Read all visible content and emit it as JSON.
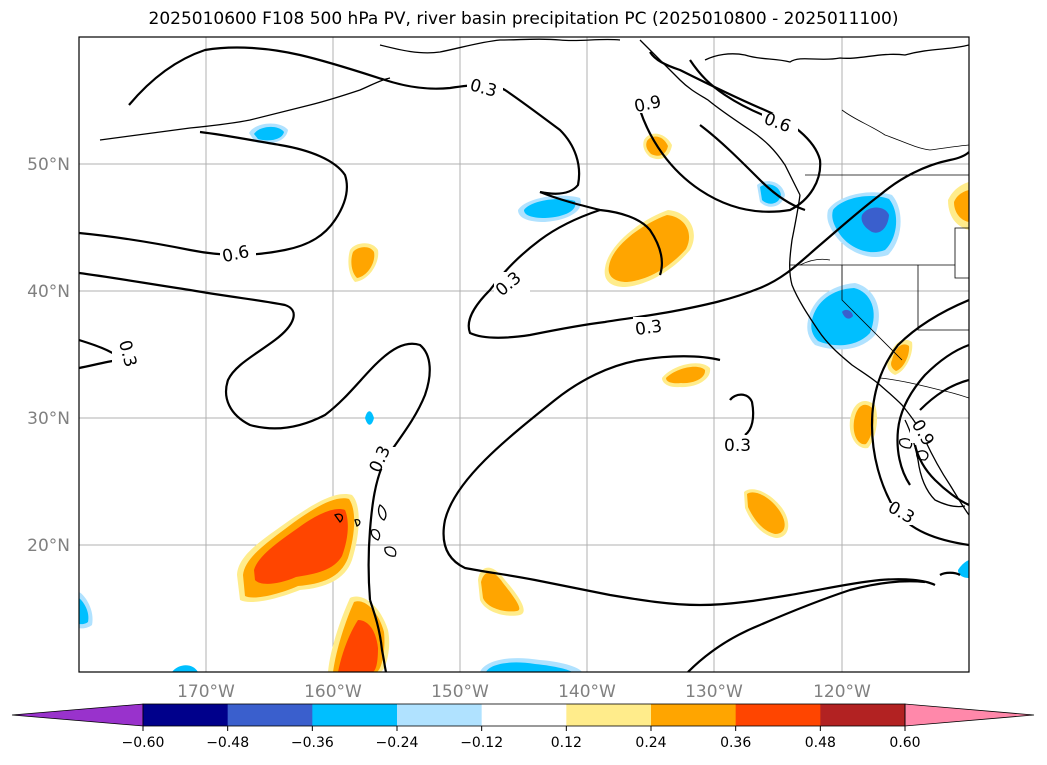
{
  "title": "2025010600 F108 500 hPa PV, river basin precipitation PC (2025010800 - 2025011100)",
  "lon_labels": [
    "170°W",
    "160°W",
    "150°W",
    "140°W",
    "130°W",
    "120°W"
  ],
  "lat_labels": [
    "50°N",
    "40°N",
    "30°N",
    "20°N"
  ],
  "colorbar": {
    "levels": [
      "−0.60",
      "−0.48",
      "−0.36",
      "−0.24",
      "−0.12",
      "0.12",
      "0.24",
      "0.36",
      "0.48",
      "0.60"
    ],
    "colors": [
      "#9932cc",
      "#00008b",
      "#3a5fcd",
      "#00bfff",
      "#b0e2ff",
      "#ffffff",
      "#ffec8b",
      "#ffa500",
      "#ff4500",
      "#b22222",
      "#ff88aa"
    ]
  },
  "contour_labels": {
    "c1": "0.3",
    "c2": "0.9",
    "c3": "0.6",
    "c4": "0.6",
    "c5": "0.3",
    "c6": "0.3",
    "c7": "0.3",
    "c8": "0.3",
    "c9": "0.3",
    "c10": "0.3",
    "c11": "0.9"
  },
  "map_extent": {
    "lon": [
      -180,
      -110
    ],
    "lat": [
      10,
      60
    ]
  }
}
